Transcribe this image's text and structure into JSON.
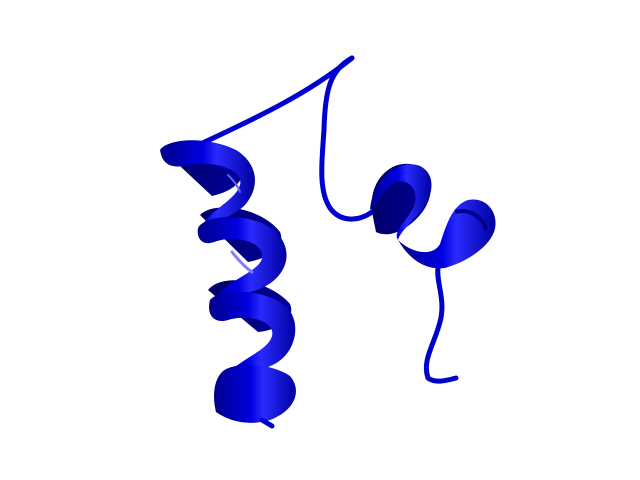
{
  "scene": {
    "background_color": "#ffffff",
    "ribbon_color": "#0000cc",
    "ribbon_dark": "#00008a",
    "ribbon_light": "#3a3aff",
    "highlight": "#8080ff",
    "representation": "cartoon"
  }
}
